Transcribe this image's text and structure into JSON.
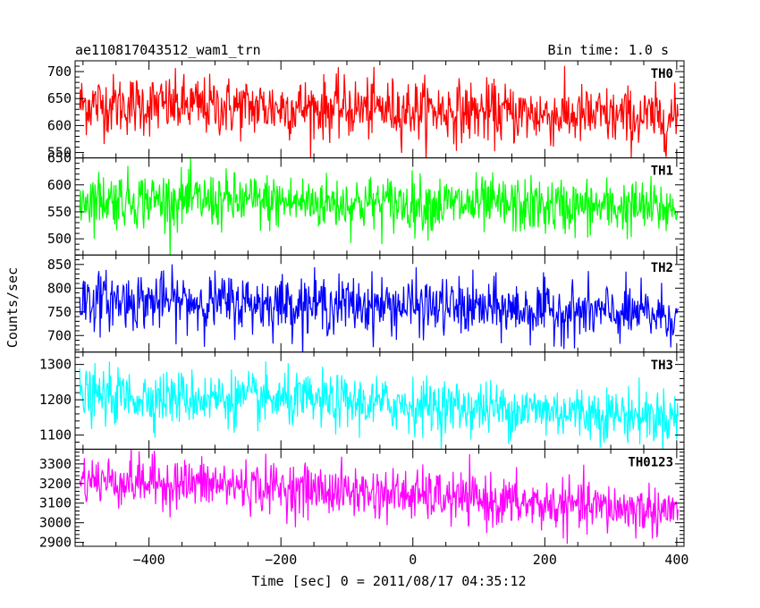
{
  "header": {
    "title": "ae110817043512_wam1_trn",
    "bin_time": "Bin time: 1.0 s"
  },
  "chart_data": {
    "type": "line",
    "title": "ae110817043512_wam1_trn",
    "subtitle": "Bin time: 1.0 s",
    "xlabel": "Time [sec] 0 = 2011/08/17 04:35:12",
    "ylabel": "Counts/sec",
    "xlim": [
      -512,
      411
    ],
    "x_ticks": [
      -400,
      -200,
      0,
      200,
      400
    ],
    "x_tick_labels": [
      "−400",
      "−200",
      "0",
      "200",
      "400"
    ],
    "x_range_data": [
      -505,
      402
    ],
    "panels": [
      {
        "name": "TH0",
        "color": "#ff0000",
        "ylim": [
          540,
          720
        ],
        "y_ticks": [
          550,
          600,
          650,
          700
        ],
        "y_tick_labels": [
          "550",
          "600",
          "650",
          "700"
        ],
        "trend": [
          [
            -505,
            640
          ],
          [
            -300,
            635
          ],
          [
            0,
            630
          ],
          [
            200,
            620
          ],
          [
            402,
            612
          ]
        ],
        "noise_sd": 28
      },
      {
        "name": "TH1",
        "color": "#00ff00",
        "ylim": [
          470,
          650
        ],
        "y_ticks": [
          500,
          550,
          600,
          650
        ],
        "y_tick_labels": [
          "500",
          "550",
          "600",
          "650"
        ],
        "trend": [
          [
            -505,
            575
          ],
          [
            -300,
            570
          ],
          [
            0,
            565
          ],
          [
            200,
            560
          ],
          [
            402,
            556
          ]
        ],
        "noise_sd": 26
      },
      {
        "name": "TH2",
        "color": "#0000ff",
        "ylim": [
          665,
          870
        ],
        "y_ticks": [
          700,
          750,
          800,
          850
        ],
        "y_tick_labels": [
          "700",
          "750",
          "800",
          "850"
        ],
        "trend": [
          [
            -505,
            775
          ],
          [
            -300,
            770
          ],
          [
            0,
            762
          ],
          [
            200,
            752
          ],
          [
            402,
            742
          ]
        ],
        "noise_sd": 30
      },
      {
        "name": "TH3",
        "color": "#00ffff",
        "ylim": [
          1060,
          1335
        ],
        "y_ticks": [
          1100,
          1200,
          1300
        ],
        "y_tick_labels": [
          "1100",
          "1200",
          "1300"
        ],
        "trend": [
          [
            -505,
            1210
          ],
          [
            -300,
            1205
          ],
          [
            0,
            1185
          ],
          [
            200,
            1170
          ],
          [
            402,
            1150
          ]
        ],
        "noise_sd": 38
      },
      {
        "name": "TH0123",
        "color": "#ff00ff",
        "ylim": [
          2880,
          3375
        ],
        "y_ticks": [
          2900,
          3000,
          3100,
          3200,
          3300
        ],
        "y_tick_labels": [
          "2900",
          "3000",
          "3100",
          "3200",
          "3300"
        ],
        "trend": [
          [
            -505,
            3220
          ],
          [
            -300,
            3195
          ],
          [
            0,
            3140
          ],
          [
            200,
            3090
          ],
          [
            402,
            3060
          ]
        ],
        "noise_sd": 65
      }
    ]
  }
}
